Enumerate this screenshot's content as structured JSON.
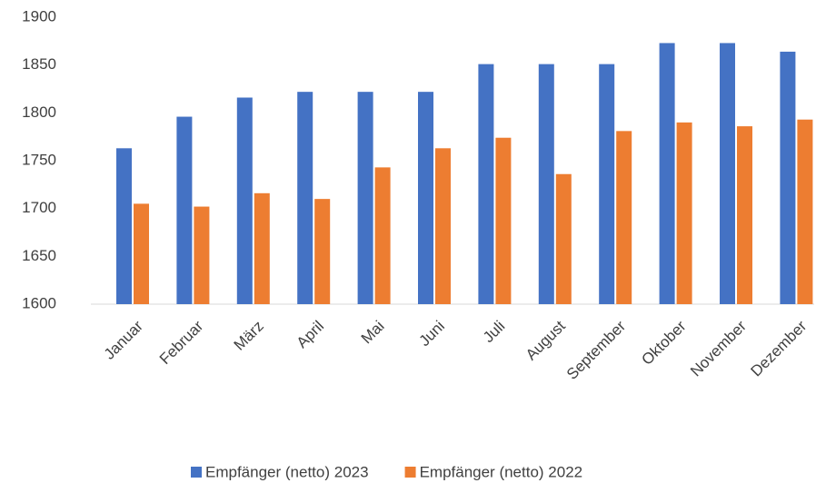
{
  "chart_data": {
    "type": "bar",
    "categories": [
      "Januar",
      "Februar",
      "März",
      "April",
      "Mai",
      "Juni",
      "Juli",
      "August",
      "September",
      "Oktober",
      "November",
      "Dezember"
    ],
    "series": [
      {
        "name": "Empfänger (netto) 2023",
        "color": "#4472c4",
        "values": [
          1763,
          1796,
          1816,
          1822,
          1822,
          1822,
          1851,
          1851,
          1851,
          1873,
          1873,
          1864
        ]
      },
      {
        "name": "Empfänger (netto) 2022",
        "color": "#ed7d31",
        "values": [
          1705,
          1702,
          1716,
          1710,
          1743,
          1763,
          1774,
          1736,
          1781,
          1790,
          1786,
          1793
        ]
      }
    ],
    "ylim": [
      1600,
      1900
    ],
    "yticks": [
      1600,
      1650,
      1700,
      1750,
      1800,
      1850,
      1900
    ],
    "grid": false,
    "legend": "bottom"
  }
}
